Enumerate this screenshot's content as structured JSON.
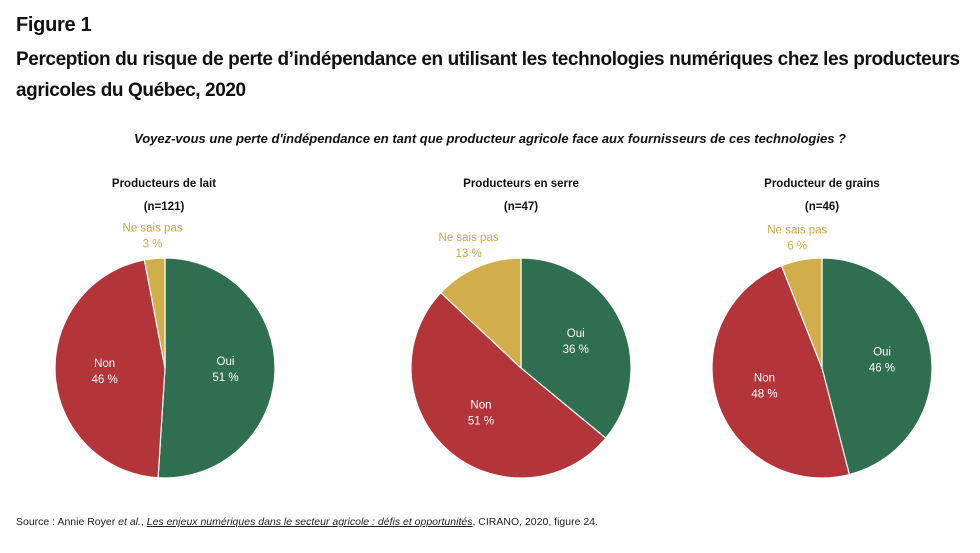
{
  "figure_label": "Figure 1",
  "title": "Perception du risque de perte d’indépendance en utilisant les technologies numériques chez les producteurs agricoles du Québec, 2020",
  "question": "Voyez-vous une perte d'indépendance en tant que producteur agricole face aux fournisseurs de ces technologies ?",
  "colors": {
    "oui": "#2f6e4e",
    "non": "#b33539",
    "nsp": "#d1ae4b",
    "nsp_label": "#cfa843",
    "slice_text": "#ffffff"
  },
  "chart_data": [
    {
      "type": "pie",
      "title": "Producteurs de lait",
      "n_label": "(n=121)",
      "slices": [
        {
          "label": "Oui",
          "value": 51,
          "value_label": "51 %"
        },
        {
          "label": "Non",
          "value": 46,
          "value_label": "46 %"
        },
        {
          "label": "Ne sais pas",
          "value": 3,
          "value_label": "3 %"
        }
      ]
    },
    {
      "type": "pie",
      "title": "Producteurs en serre",
      "n_label": "(n=47)",
      "slices": [
        {
          "label": "Oui",
          "value": 36,
          "value_label": "36 %"
        },
        {
          "label": "Non",
          "value": 51,
          "value_label": "51 %"
        },
        {
          "label": "Ne sais pas",
          "value": 13,
          "value_label": "13 %"
        }
      ]
    },
    {
      "type": "pie",
      "title": "Producteur de grains",
      "n_label": "(n=46)",
      "slices": [
        {
          "label": "Oui",
          "value": 46,
          "value_label": "46 %"
        },
        {
          "label": "Non",
          "value": 48,
          "value_label": "48 %"
        },
        {
          "label": "Ne sais pas",
          "value": 6,
          "value_label": "6 %"
        }
      ]
    }
  ],
  "source": {
    "prefix": "Source : Annie Royer ",
    "etal": "et al.",
    "sep": ", ",
    "reference": "Les enjeux numériques dans le secteur agricole : défis et opportunités",
    "suffix": ", CIRANO, 2020, figure 24."
  }
}
